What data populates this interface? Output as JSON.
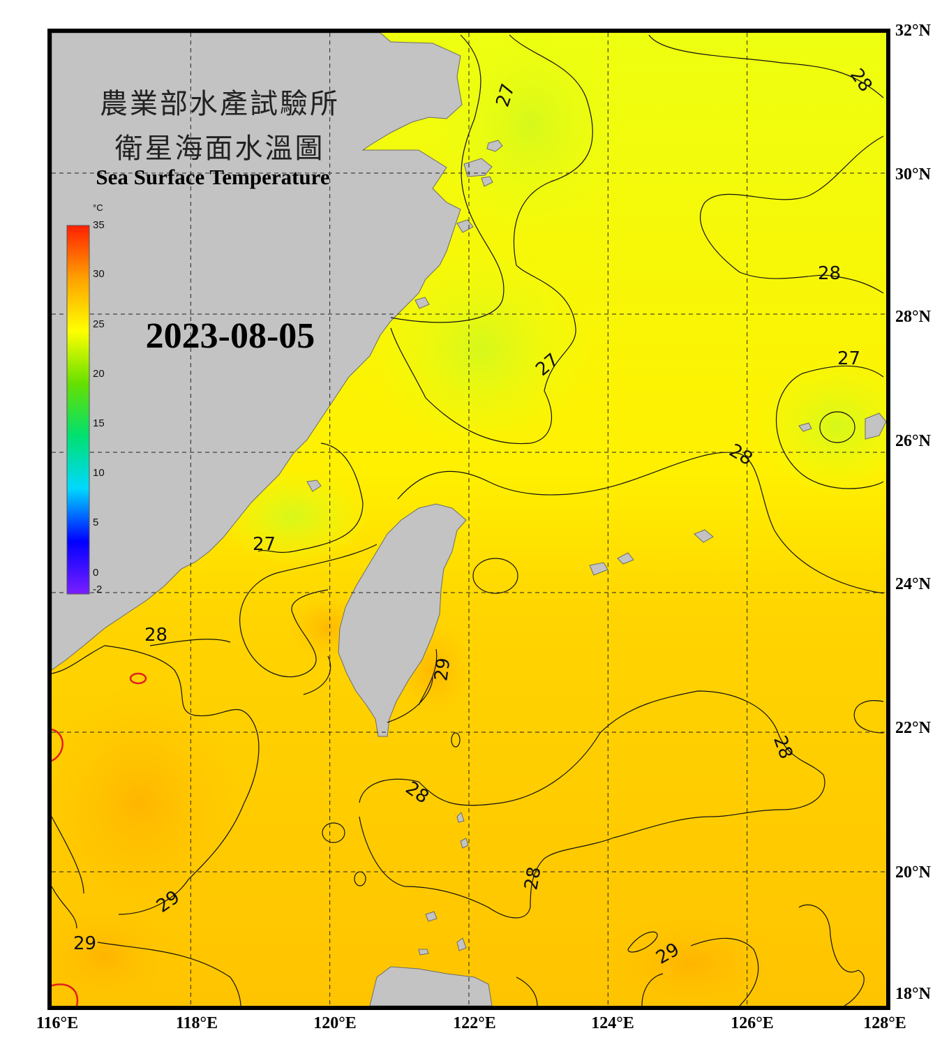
{
  "title": {
    "line1": "農業部水產試驗所",
    "line2": "衛星海面水溫圖",
    "english": "Sea Surface Temperature"
  },
  "date": "2023-08-05",
  "colorbar": {
    "unit": "°C",
    "ticks": [
      "35",
      "30",
      "25",
      "20",
      "15",
      "10",
      "5",
      "0",
      "-2"
    ],
    "range": [
      -2,
      35
    ],
    "colors": [
      "#7a1fff",
      "#0000ff",
      "#00d8ff",
      "#00e070",
      "#66e000",
      "#ffff00",
      "#ffa000",
      "#ff2000"
    ]
  },
  "axes": {
    "longitude": [
      "116°E",
      "118°E",
      "120°E",
      "122°E",
      "124°E",
      "126°E",
      "128°E"
    ],
    "latitude": [
      "18°N",
      "20°N",
      "22°N",
      "24°N",
      "26°N",
      "28°N",
      "30°N",
      "32°N"
    ]
  },
  "contour_labels": [
    "27",
    "28",
    "29"
  ],
  "colors": {
    "land": "#c3c3c3",
    "sst_warm": "#ffc000",
    "sst_mid": "#ffee00",
    "sst_cool": "#e6ff12",
    "frame": "#000000"
  }
}
